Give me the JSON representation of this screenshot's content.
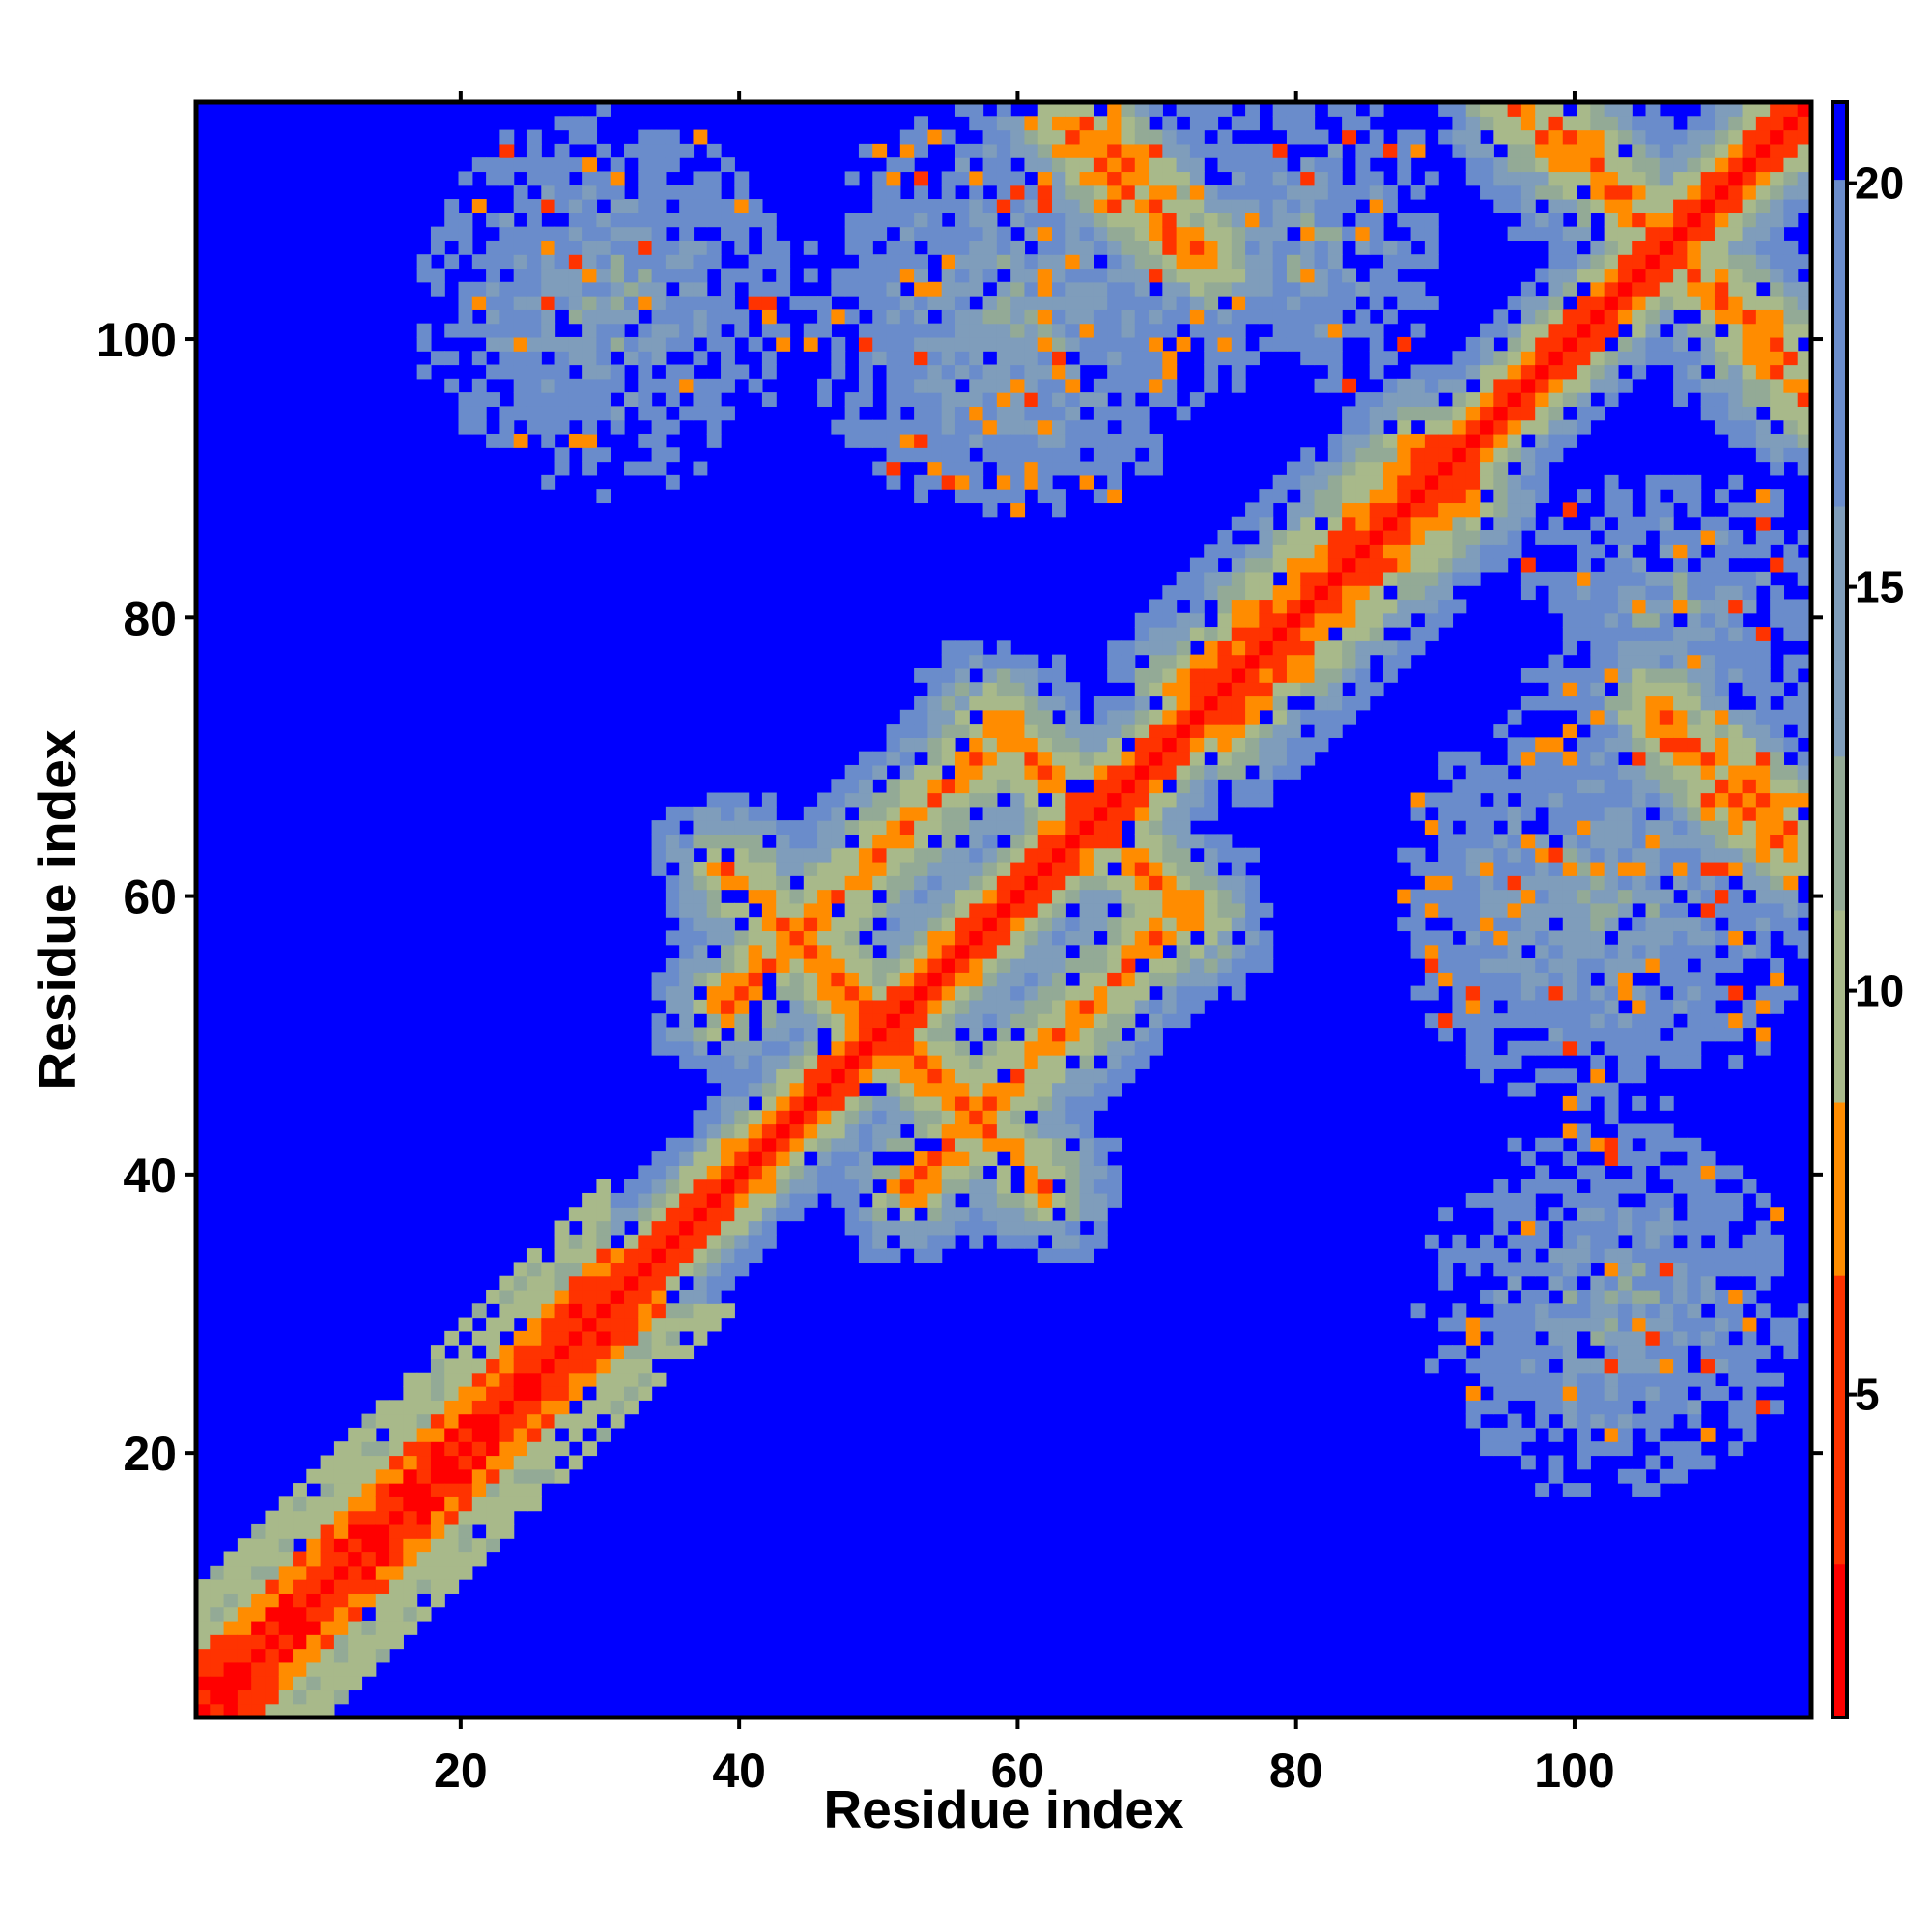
{
  "chart_data": {
    "type": "heatmap",
    "title": "",
    "xlabel": "Residue index",
    "ylabel": "Residue index",
    "n_residues": 117,
    "xlim": [
      1,
      117
    ],
    "ylim": [
      1,
      117
    ],
    "x_ticks": [
      20,
      40,
      60,
      80,
      100
    ],
    "y_ticks": [
      20,
      40,
      60,
      80,
      100
    ],
    "colorbar": {
      "placement": "right",
      "ticks": [
        5,
        10,
        15,
        20
      ],
      "range": [
        1,
        21
      ]
    },
    "colors": {
      "background": "#0000ff",
      "diagonal": "#ff0000",
      "close_contact": "#ff8000",
      "mid": "#a6b98a",
      "far": "#6f8fc4",
      "axis": "#000000"
    },
    "distance_bins": [
      {
        "max": 3,
        "color": "#ff0000"
      },
      {
        "max": 6.5,
        "color": "#ff3300"
      },
      {
        "max": 8.5,
        "color": "#ff8c00"
      },
      {
        "max": 11,
        "color": "#a8b98a"
      },
      {
        "max": 13,
        "color": "#93aa96"
      },
      {
        "max": 16,
        "color": "#7f9dbb"
      },
      {
        "max": 20,
        "color": "#6a8ccb"
      },
      {
        "max": 999,
        "color": "#0000ff"
      }
    ],
    "secondary_features": [
      {
        "kind": "helix-band",
        "from": 1,
        "to": 30,
        "width": 5
      },
      {
        "kind": "sheet-antiparallel",
        "i": [
          39,
          58
        ],
        "j": [
          62,
          43
        ]
      },
      {
        "kind": "sheet-antiparallel",
        "i": [
          52,
          70
        ],
        "j": [
          39,
          57
        ]
      },
      {
        "kind": "sheet-antiparallel",
        "i": [
          58,
          72
        ],
        "j": [
          73,
          59
        ]
      },
      {
        "kind": "sheet-parallel",
        "i": [
          72,
          90
        ],
        "j": [
          75,
          93
        ]
      },
      {
        "kind": "sheet-antiparallel",
        "i": [
          96,
          116
        ],
        "j": [
          117,
          99
        ]
      },
      {
        "kind": "sheet-antiparallel",
        "i": [
          65,
          74
        ],
        "j": [
          116,
          106
        ]
      },
      {
        "kind": "sheet-antiparallel",
        "i": [
          107,
          116
        ],
        "j": [
          72,
          63
        ]
      },
      {
        "kind": "blob",
        "ci": 30,
        "cj": 103,
        "r": 14
      },
      {
        "kind": "blob",
        "ci": 80,
        "cj": 108,
        "r": 12
      },
      {
        "kind": "blob",
        "ci": 103,
        "cj": 60,
        "r": 16
      },
      {
        "kind": "blob",
        "ci": 60,
        "cj": 100,
        "r": 12
      }
    ]
  }
}
